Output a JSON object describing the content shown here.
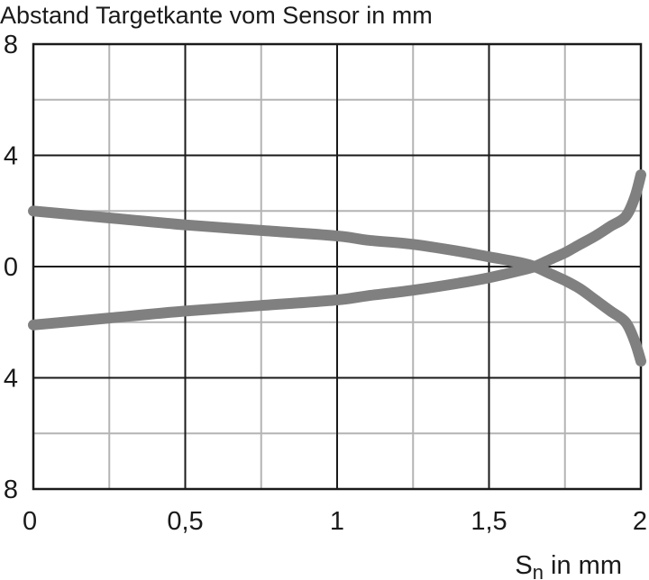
{
  "chart_data": {
    "type": "line",
    "title": "Abstand Targetkante vom Sensor in mm",
    "xlabel": {
      "main": "S",
      "sub": "n",
      "suffix": " in mm"
    },
    "ylabel": "",
    "xlim": [
      0,
      2
    ],
    "ylim": [
      -8,
      8
    ],
    "x_major_ticks": [
      0,
      0.5,
      1,
      1.5,
      2
    ],
    "x_tick_labels": [
      "0",
      "0,5",
      "1",
      "1,5",
      "2"
    ],
    "x_minor_ticks": [
      0.25,
      0.75,
      1.25,
      1.75
    ],
    "y_major_ticks": [
      8,
      4,
      0,
      -4,
      -8
    ],
    "y_tick_labels": [
      "8",
      "4",
      "0",
      "4",
      "8"
    ],
    "y_minor_ticks": [
      6,
      2,
      -2,
      -6
    ],
    "grid": true,
    "line_color": "#808080",
    "series": [
      {
        "x": [
          0,
          0.25,
          0.5,
          0.75,
          1,
          1.1,
          1.25,
          1.4,
          1.5,
          1.6,
          1.65,
          1.7,
          1.75,
          1.8,
          1.85,
          1.9,
          1.95,
          1.98,
          2
        ],
        "y": [
          2,
          1.75,
          1.5,
          1.3,
          1.1,
          0.95,
          0.8,
          0.55,
          0.35,
          0.15,
          0,
          -0.25,
          -0.5,
          -0.8,
          -1.2,
          -1.6,
          -2.0,
          -2.7,
          -3.4
        ]
      },
      {
        "x": [
          0,
          0.25,
          0.5,
          0.75,
          1,
          1.1,
          1.25,
          1.4,
          1.5,
          1.6,
          1.65,
          1.7,
          1.75,
          1.8,
          1.85,
          1.9,
          1.95,
          1.98,
          2
        ],
        "y": [
          -2.1,
          -1.85,
          -1.6,
          -1.4,
          -1.2,
          -1.05,
          -0.85,
          -0.6,
          -0.4,
          -0.15,
          0,
          0.25,
          0.5,
          0.8,
          1.1,
          1.45,
          1.8,
          2.5,
          3.3
        ]
      }
    ]
  }
}
